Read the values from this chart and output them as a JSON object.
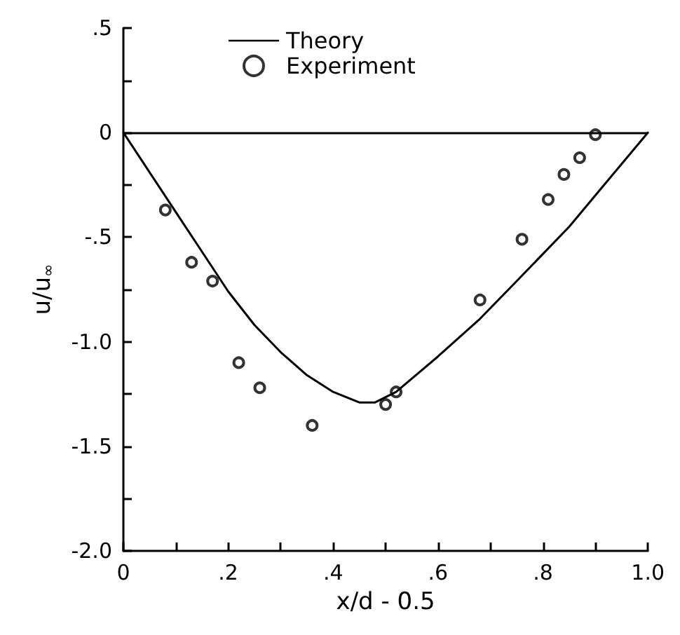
{
  "chart_data": {
    "type": "line",
    "xlabel": "x/d - 0.5",
    "ylabel": "u/u$_{∞}$",
    "xlim": [
      0,
      1.0
    ],
    "ylim": [
      -2.0,
      0.5
    ],
    "xticks": [
      0,
      {
        "value": 0.1,
        "label": null
      },
      {
        "value": 0.2,
        "label": ".2"
      },
      {
        "value": 0.3,
        "label": null
      },
      {
        "value": 0.4,
        "label": ".4"
      },
      {
        "value": 0.5,
        "label": null
      },
      {
        "value": 0.6,
        "label": ".6"
      },
      {
        "value": 0.7,
        "label": null
      },
      {
        "value": 0.8,
        "label": ".8"
      },
      {
        "value": 0.9,
        "label": null
      },
      {
        "value": 1.0,
        "label": "1.0"
      }
    ],
    "yticks": [
      {
        "value": -2.0,
        "label": "-2.0"
      },
      {
        "value": -1.75,
        "label": null
      },
      {
        "value": -1.5,
        "label": "-1.5"
      },
      {
        "value": -1.25,
        "label": null
      },
      {
        "value": -1.0,
        "label": "-1.0"
      },
      {
        "value": -0.75,
        "label": null
      },
      {
        "value": -0.5,
        "label": "-.5"
      },
      {
        "value": -0.25,
        "label": null
      },
      0,
      {
        "value": 0.25,
        "label": null
      },
      {
        "value": 0.5,
        "label": ".5"
      }
    ],
    "grid": false,
    "legend": "top",
    "ref_lines": [
      {
        "axis": "y",
        "value": 0,
        "color": "#000000"
      }
    ],
    "series": [
      {
        "name": "Theory",
        "type": "line",
        "color": "#000000",
        "marker": "none",
        "line_style": "solid",
        "x": [
          0,
          0.1,
          0.15,
          0.2,
          0.25,
          0.3,
          0.35,
          0.4,
          0.45,
          0.48,
          0.52,
          0.6,
          0.68,
          0.75,
          0.85,
          0.92,
          1.0
        ],
        "values": [
          0,
          -0.38,
          -0.57,
          -0.76,
          -0.92,
          -1.05,
          -1.16,
          -1.24,
          -1.29,
          -1.29,
          -1.24,
          -1.07,
          -0.89,
          -0.71,
          -0.45,
          -0.24,
          0
        ]
      },
      {
        "name": "Experiment",
        "type": "scatter",
        "color": "#000000",
        "marker": "circle",
        "x": [
          0.08,
          0.13,
          0.17,
          0.22,
          0.26,
          0.36,
          0.5,
          0.52,
          0.68,
          0.76,
          0.81,
          0.84,
          0.87,
          0.9
        ],
        "values": [
          -0.37,
          -0.62,
          -0.71,
          -1.1,
          -1.22,
          -1.4,
          -1.3,
          -1.24,
          -0.8,
          -0.51,
          -0.32,
          -0.2,
          -0.12,
          -0.01
        ]
      }
    ]
  }
}
